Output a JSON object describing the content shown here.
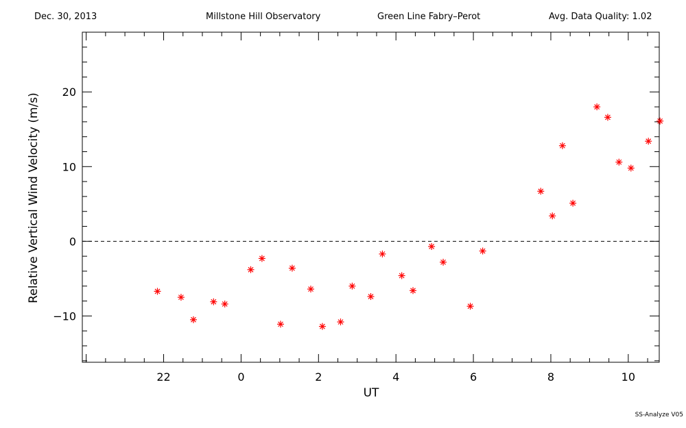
{
  "header": {
    "date": "Dec. 30, 2013",
    "observatory": "Millstone Hill Observatory",
    "instrument": "Green Line Fabry–Perot",
    "quality": "Avg. Data Quality: 1.02"
  },
  "footer": "SS-Analyze V05",
  "chart_data": {
    "type": "scatter",
    "title": "",
    "xlabel": "UT",
    "ylabel": "Relative Vertical Wind Velocity (m/s)",
    "x_tick_labels": [
      "22",
      "0",
      "2",
      "4",
      "6",
      "8",
      "10"
    ],
    "x_tick_values": [
      22,
      24,
      26,
      28,
      30,
      32,
      34
    ],
    "xlim": [
      19.9,
      34.8
    ],
    "y_tick_labels": [
      "−10",
      "0",
      "10",
      "20"
    ],
    "y_tick_values": [
      -10,
      0,
      10,
      20
    ],
    "ylim": [
      -16.2,
      28
    ],
    "zero_line": true,
    "marker": "asterisk",
    "marker_color": "#ff0000",
    "series": [
      {
        "x": [
          21.84,
          22.45,
          22.77,
          23.29,
          23.58,
          24.25,
          24.54,
          25.02,
          25.32,
          25.8,
          26.1,
          26.57,
          26.87,
          27.35,
          27.65,
          28.15,
          28.44,
          28.92,
          29.22,
          29.92,
          30.24,
          31.74,
          32.04,
          32.3,
          32.57,
          33.19,
          33.47,
          33.76,
          34.07,
          34.52,
          34.82
        ],
        "y": [
          -6.7,
          -7.5,
          -10.5,
          -8.1,
          -8.4,
          -3.8,
          -2.3,
          -11.1,
          -3.6,
          -6.4,
          -11.4,
          -10.8,
          -6.0,
          -7.4,
          -1.7,
          -4.6,
          -6.6,
          -0.7,
          -2.8,
          -8.7,
          -1.3,
          6.7,
          3.4,
          12.8,
          5.1,
          18.0,
          16.6,
          10.6,
          9.8,
          13.4,
          16.1
        ]
      }
    ]
  }
}
